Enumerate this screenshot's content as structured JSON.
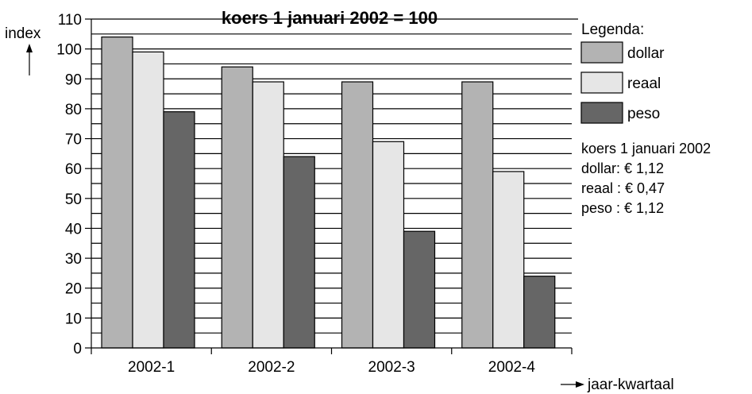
{
  "chart_data": {
    "type": "bar",
    "title": "koers 1 januari 2002 = 100",
    "ylabel": "index",
    "xlabel": "jaar-kwartaal",
    "ylim": [
      0,
      110
    ],
    "yticks": [
      0,
      10,
      20,
      30,
      40,
      50,
      60,
      70,
      80,
      90,
      100,
      110
    ],
    "grid": true,
    "categories": [
      "2002-1",
      "2002-2",
      "2002-3",
      "2002-4"
    ],
    "series": [
      {
        "name": "dollar",
        "color": "#b3b3b3",
        "values": [
          104,
          94,
          89,
          89
        ]
      },
      {
        "name": "reaal",
        "color": "#e6e6e6",
        "values": [
          99,
          89,
          69,
          59
        ]
      },
      {
        "name": "peso",
        "color": "#666666",
        "values": [
          79,
          64,
          39,
          24
        ]
      }
    ],
    "legend": {
      "title": "Legenda:",
      "placement": "right"
    },
    "notes": [
      "koers 1 januari 2002",
      "dollar:  € 1,12",
      "reaal :  € 0,47",
      "peso :  € 1,12"
    ]
  }
}
